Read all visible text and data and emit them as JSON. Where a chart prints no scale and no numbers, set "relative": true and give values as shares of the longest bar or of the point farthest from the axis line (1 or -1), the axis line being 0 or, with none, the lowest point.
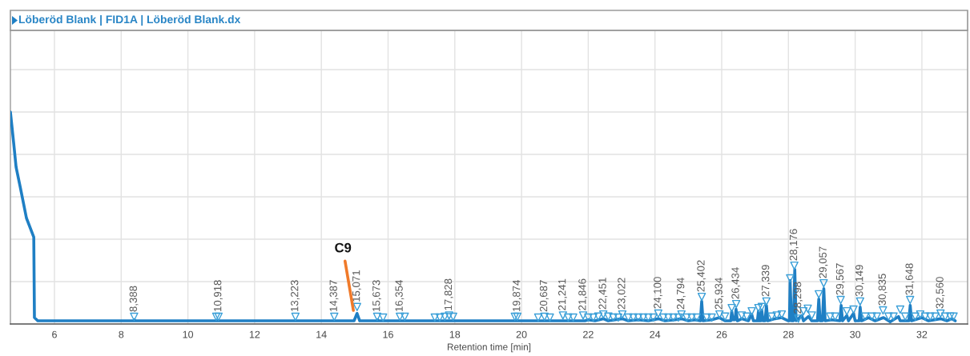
{
  "chart_data": {
    "type": "line",
    "title": "Löberöd Blank | FID1A | Löberöd Blank.dx",
    "xlabel": "Retention time [min]",
    "relative": true,
    "xlim": [
      4.68,
      33.37
    ],
    "xticks": [
      6,
      8,
      10,
      12,
      14,
      16,
      18,
      20,
      22,
      24,
      26,
      28,
      30,
      32
    ],
    "grid": true,
    "tick_labels": "x",
    "line_style": "solid",
    "series": [
      {
        "color": "#1f7fc4",
        "marker": "none",
        "x": [
          4.68,
          4.78,
          4.85,
          4.97,
          5.16,
          5.38,
          5.4,
          5.5,
          8.38,
          8.4,
          8.42,
          14.98,
          15.07,
          15.15,
          15.67,
          15.69,
          15.71,
          21.9,
          22.0,
          22.2,
          22.45,
          22.6,
          22.8,
          23.02,
          23.2,
          23.5,
          23.8,
          24.1,
          24.3,
          24.6,
          24.79,
          25.0,
          25.2,
          25.36,
          25.4,
          25.44,
          25.7,
          25.93,
          26.1,
          26.27,
          26.3,
          26.34,
          26.4,
          26.43,
          26.47,
          26.6,
          26.8,
          26.9,
          26.95,
          27.07,
          27.1,
          27.13,
          27.17,
          27.2,
          27.24,
          27.3,
          27.34,
          27.38,
          27.6,
          27.8,
          28.0,
          28.03,
          28.05,
          28.09,
          28.15,
          28.19,
          28.23,
          28.4,
          28.45,
          28.6,
          28.7,
          28.87,
          28.91,
          28.95,
          29.02,
          29.06,
          29.1,
          29.3,
          29.54,
          29.58,
          29.62,
          29.75,
          29.8,
          29.95,
          30.0,
          30.12,
          30.15,
          30.19,
          30.4,
          30.6,
          30.85,
          31.05,
          31.3,
          31.35,
          31.61,
          31.65,
          31.69,
          32.0,
          32.2,
          32.56,
          32.75,
          32.9,
          33.0
        ],
        "values": [
          1.0,
          0.85,
          0.74,
          0.65,
          0.5,
          0.41,
          0.03,
          0.015,
          0.015,
          0.02,
          0.015,
          0.015,
          0.05,
          0.015,
          0.015,
          0.02,
          0.015,
          0.015,
          0.02,
          0.015,
          0.025,
          0.015,
          0.02,
          0.025,
          0.015,
          0.02,
          0.015,
          0.025,
          0.015,
          0.02,
          0.025,
          0.015,
          0.02,
          0.015,
          0.107,
          0.015,
          0.02,
          0.03,
          0.015,
          0.015,
          0.06,
          0.02,
          0.02,
          0.07,
          0.015,
          0.025,
          0.015,
          0.045,
          0.015,
          0.015,
          0.06,
          0.015,
          0.015,
          0.065,
          0.015,
          0.015,
          0.088,
          0.015,
          0.025,
          0.03,
          0.015,
          0.015,
          0.205,
          0.015,
          0.015,
          0.257,
          0.015,
          0.04,
          0.015,
          0.035,
          0.015,
          0.015,
          0.118,
          0.015,
          0.015,
          0.167,
          0.015,
          0.02,
          0.015,
          0.088,
          0.015,
          0.04,
          0.015,
          0.05,
          0.015,
          0.015,
          0.08,
          0.015,
          0.03,
          0.015,
          0.03,
          0.01,
          0.035,
          0.015,
          0.015,
          0.088,
          0.015,
          0.03,
          0.015,
          0.025,
          0.015,
          0.025,
          0.015
        ]
      },
      {
        "type": "scatter",
        "color": "#3a9fd8",
        "marker": "triangle",
        "x": [
          8.388,
          10.85,
          10.918,
          13.223,
          14.387,
          15.071,
          15.673,
          15.85,
          16.354,
          16.5,
          17.4,
          17.55,
          17.7,
          17.828,
          17.95,
          19.8,
          19.874,
          20.5,
          20.687,
          20.85,
          21.241,
          21.4,
          21.55,
          21.846,
          22.0,
          22.15,
          22.3,
          22.451,
          22.6,
          22.75,
          22.9,
          23.022,
          23.2,
          23.35,
          23.5,
          23.65,
          23.8,
          23.95,
          24.1,
          24.25,
          24.4,
          24.55,
          24.7,
          24.794,
          24.95,
          25.1,
          25.25,
          25.402,
          25.55,
          25.7,
          25.934,
          26.1,
          26.3,
          26.434,
          26.6,
          26.75,
          26.9,
          27.1,
          27.2,
          27.339,
          27.5,
          27.65,
          27.8,
          28.05,
          28.176,
          28.298,
          28.45,
          28.58,
          28.7,
          28.91,
          29.057,
          29.25,
          29.4,
          29.567,
          29.75,
          29.95,
          30.149,
          30.3,
          30.5,
          30.65,
          30.835,
          31.0,
          31.15,
          31.35,
          31.5,
          31.648,
          31.8,
          31.95,
          32.1,
          32.25,
          32.4,
          32.56,
          32.7,
          32.85,
          32.95
        ],
        "values": [
          0.034,
          0.034,
          0.034,
          0.034,
          0.034,
          0.08,
          0.034,
          0.03,
          0.034,
          0.034,
          0.03,
          0.03,
          0.034,
          0.04,
          0.034,
          0.034,
          0.034,
          0.03,
          0.034,
          0.03,
          0.04,
          0.03,
          0.03,
          0.04,
          0.03,
          0.03,
          0.035,
          0.045,
          0.035,
          0.03,
          0.03,
          0.045,
          0.03,
          0.03,
          0.03,
          0.03,
          0.03,
          0.03,
          0.049,
          0.03,
          0.03,
          0.03,
          0.03,
          0.045,
          0.03,
          0.03,
          0.03,
          0.128,
          0.03,
          0.03,
          0.045,
          0.035,
          0.075,
          0.094,
          0.04,
          0.035,
          0.06,
          0.075,
          0.08,
          0.106,
          0.035,
          0.04,
          0.045,
          0.215,
          0.275,
          0.025,
          0.06,
          0.072,
          0.04,
          0.14,
          0.192,
          0.035,
          0.035,
          0.113,
          0.06,
          0.068,
          0.106,
          0.035,
          0.035,
          0.035,
          0.064,
          0.035,
          0.035,
          0.068,
          0.035,
          0.113,
          0.035,
          0.045,
          0.035,
          0.035,
          0.035,
          0.049,
          0.035,
          0.035,
          0.035
        ]
      }
    ],
    "annotations": [
      {
        "text": "C9",
        "x": 14.96,
        "y": 0.064
      },
      {
        "text": "8,388",
        "x": 8.388,
        "y": 0.034
      },
      {
        "text": "10,918",
        "x": 10.918,
        "y": 0.034
      },
      {
        "text": "13,223",
        "x": 13.223,
        "y": 0.034
      },
      {
        "text": "14,387",
        "x": 14.387,
        "y": 0.034
      },
      {
        "text": "15,071",
        "x": 15.071,
        "y": 0.08
      },
      {
        "text": "15,673",
        "x": 15.673,
        "y": 0.034
      },
      {
        "text": "16,354",
        "x": 16.354,
        "y": 0.034
      },
      {
        "text": "17,828",
        "x": 17.828,
        "y": 0.04
      },
      {
        "text": "19,874",
        "x": 19.874,
        "y": 0.034
      },
      {
        "text": "20,687",
        "x": 20.687,
        "y": 0.034
      },
      {
        "text": "21,241",
        "x": 21.241,
        "y": 0.04
      },
      {
        "text": "21,846",
        "x": 21.846,
        "y": 0.04
      },
      {
        "text": "22,451",
        "x": 22.451,
        "y": 0.045
      },
      {
        "text": "23,022",
        "x": 23.022,
        "y": 0.045
      },
      {
        "text": "24,100",
        "x": 24.1,
        "y": 0.049
      },
      {
        "text": "24,794",
        "x": 24.794,
        "y": 0.045
      },
      {
        "text": "25,402",
        "x": 25.402,
        "y": 0.128
      },
      {
        "text": "25,934",
        "x": 25.934,
        "y": 0.045
      },
      {
        "text": "26,434",
        "x": 26.434,
        "y": 0.094
      },
      {
        "text": "27,339",
        "x": 27.339,
        "y": 0.106
      },
      {
        "text": "28,176",
        "x": 28.176,
        "y": 0.275
      },
      {
        "text": "28,298",
        "x": 28.298,
        "y": 0.025
      },
      {
        "text": "29,057",
        "x": 29.057,
        "y": 0.192
      },
      {
        "text": "29,567",
        "x": 29.567,
        "y": 0.113
      },
      {
        "text": "30,149",
        "x": 30.149,
        "y": 0.106
      },
      {
        "text": "30,835",
        "x": 30.835,
        "y": 0.064
      },
      {
        "text": "31,648",
        "x": 31.648,
        "y": 0.113
      },
      {
        "text": "32,560",
        "x": 32.56,
        "y": 0.049
      }
    ]
  }
}
